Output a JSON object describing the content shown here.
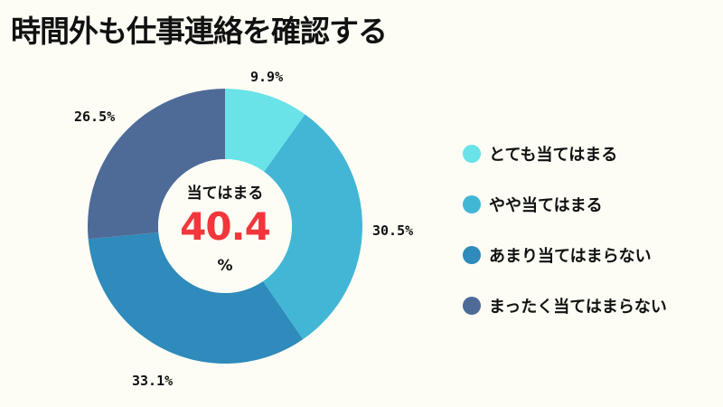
{
  "title": "時間外も仕事連絡を確認する",
  "center": {
    "label": "当てはまる",
    "value": "40.4",
    "unit": "%"
  },
  "colors": {
    "background": "#fdfdf5",
    "accent_value": "#f2363c"
  },
  "chart_data": {
    "type": "pie",
    "variant": "donut",
    "title": "時間外も仕事連絡を確認する",
    "categories": [
      "とても当てはまる",
      "やや当てはまる",
      "あまり当てはまらない",
      "まったく当てはまらない"
    ],
    "values": [
      9.9,
      30.5,
      33.1,
      26.5
    ],
    "value_labels": [
      "9.9%",
      "30.5%",
      "33.1%",
      "26.5%"
    ],
    "colors": [
      "#6ae3e8",
      "#43b6d6",
      "#2e8bbb",
      "#4e6b98"
    ],
    "start_angle_deg": 0,
    "direction": "clockwise",
    "legend_position": "right",
    "center_annotation": "当てはまる 40.4 %"
  },
  "legend": [
    {
      "label": "とても当てはまる",
      "color": "#6ae3e8"
    },
    {
      "label": "やや当てはまる",
      "color": "#43b6d6"
    },
    {
      "label": "あまり当てはまらない",
      "color": "#2e8bbb"
    },
    {
      "label": "まったく当てはまらない",
      "color": "#4e6b98"
    }
  ]
}
